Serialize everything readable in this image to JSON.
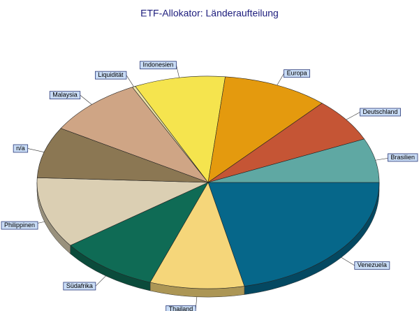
{
  "chart_data": {
    "type": "pie",
    "title": "ETF-Allokator: Länderaufteilung",
    "categories": [
      "Venezuela",
      "Thailand",
      "Südafrika",
      "Philippinen",
      "n/a",
      "Malaysia",
      "Liquidität",
      "Indonesien",
      "Europa",
      "Deutschland",
      "Brasilien"
    ],
    "values": [
      21.6,
      8.9,
      9.4,
      10.8,
      7.8,
      9.2,
      0.3,
      8.6,
      10,
      6.7,
      6.7
    ],
    "colors": [
      "#06678a",
      "#f5d67a",
      "#0f6b55",
      "#dbcfb3",
      "#8b7753",
      "#cfa585",
      "#ece3a8",
      "#f5e44e",
      "#e49a0e",
      "#c55535",
      "#5fa8a3"
    ]
  }
}
